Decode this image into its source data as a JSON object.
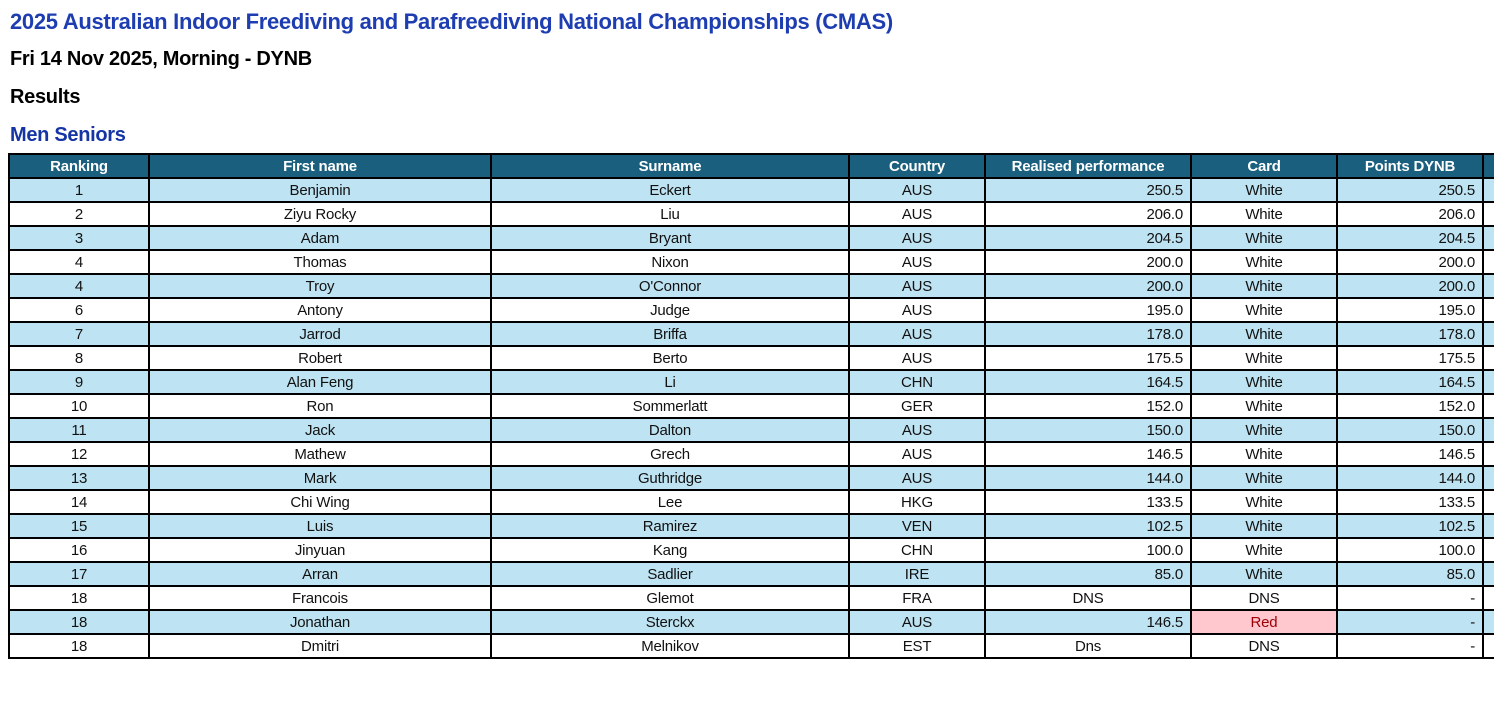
{
  "header": {
    "event_title": "2025 Australian Indoor Freediving and Parafreediving National Championships (CMAS)",
    "session": "Fri 14 Nov 2025, Morning - DYNB",
    "results_label": "Results",
    "category": "Men Seniors"
  },
  "colors": {
    "event_title_blue": "#1d3db1",
    "category_blue": "#1535a5",
    "table_header_bg": "#1a5f7e",
    "table_header_text": "#ffffff",
    "row_banded_bg": "#bee3f2",
    "row_plain_bg": "#ffffff",
    "red_card_bg": "#ffc7ce",
    "red_card_text": "#9c0006",
    "grid_border": "#000000"
  },
  "table": {
    "columns": [
      "Ranking",
      "First name",
      "Surname",
      "Country",
      "Realised performance",
      "Card",
      "Points DYNB"
    ],
    "rows": [
      {
        "ranking": "1",
        "first_name": "Benjamin",
        "surname": "Eckert",
        "country": "AUS",
        "performance": "250.5",
        "card": "White",
        "points": "250.5"
      },
      {
        "ranking": "2",
        "first_name": "Ziyu Rocky",
        "surname": "Liu",
        "country": "AUS",
        "performance": "206.0",
        "card": "White",
        "points": "206.0"
      },
      {
        "ranking": "3",
        "first_name": "Adam",
        "surname": "Bryant",
        "country": "AUS",
        "performance": "204.5",
        "card": "White",
        "points": "204.5"
      },
      {
        "ranking": "4",
        "first_name": "Thomas",
        "surname": "Nixon",
        "country": "AUS",
        "performance": "200.0",
        "card": "White",
        "points": "200.0"
      },
      {
        "ranking": "4",
        "first_name": "Troy",
        "surname": "O'Connor",
        "country": "AUS",
        "performance": "200.0",
        "card": "White",
        "points": "200.0"
      },
      {
        "ranking": "6",
        "first_name": "Antony",
        "surname": "Judge",
        "country": "AUS",
        "performance": "195.0",
        "card": "White",
        "points": "195.0"
      },
      {
        "ranking": "7",
        "first_name": "Jarrod",
        "surname": "Briffa",
        "country": "AUS",
        "performance": "178.0",
        "card": "White",
        "points": "178.0"
      },
      {
        "ranking": "8",
        "first_name": "Robert",
        "surname": "Berto",
        "country": "AUS",
        "performance": "175.5",
        "card": "White",
        "points": "175.5"
      },
      {
        "ranking": "9",
        "first_name": "Alan Feng",
        "surname": "Li",
        "country": "CHN",
        "performance": "164.5",
        "card": "White",
        "points": "164.5"
      },
      {
        "ranking": "10",
        "first_name": "Ron",
        "surname": "Sommerlatt",
        "country": "GER",
        "performance": "152.0",
        "card": "White",
        "points": "152.0"
      },
      {
        "ranking": "11",
        "first_name": "Jack",
        "surname": "Dalton",
        "country": "AUS",
        "performance": "150.0",
        "card": "White",
        "points": "150.0"
      },
      {
        "ranking": "12",
        "first_name": "Mathew",
        "surname": "Grech",
        "country": "AUS",
        "performance": "146.5",
        "card": "White",
        "points": "146.5"
      },
      {
        "ranking": "13",
        "first_name": "Mark",
        "surname": "Guthridge",
        "country": "AUS",
        "performance": "144.0",
        "card": "White",
        "points": "144.0"
      },
      {
        "ranking": "14",
        "first_name": "Chi Wing",
        "surname": "Lee",
        "country": "HKG",
        "performance": "133.5",
        "card": "White",
        "points": "133.5"
      },
      {
        "ranking": "15",
        "first_name": "Luis",
        "surname": "Ramirez",
        "country": "VEN",
        "performance": "102.5",
        "card": "White",
        "points": "102.5"
      },
      {
        "ranking": "16",
        "first_name": "Jinyuan",
        "surname": "Kang",
        "country": "CHN",
        "performance": "100.0",
        "card": "White",
        "points": "100.0"
      },
      {
        "ranking": "17",
        "first_name": "Arran",
        "surname": "Sadlier",
        "country": "IRE",
        "performance": "85.0",
        "card": "White",
        "points": "85.0"
      },
      {
        "ranking": "18",
        "first_name": "Francois",
        "surname": "Glemot",
        "country": "FRA",
        "performance": "DNS",
        "card": "DNS",
        "points": "-"
      },
      {
        "ranking": "18",
        "first_name": "Jonathan",
        "surname": "Sterckx",
        "country": "AUS",
        "performance": "146.5",
        "card": "Red",
        "points": "-"
      },
      {
        "ranking": "18",
        "first_name": "Dmitri",
        "surname": "Melnikov",
        "country": "EST",
        "performance": "Dns",
        "card": "DNS",
        "points": "-"
      }
    ]
  }
}
